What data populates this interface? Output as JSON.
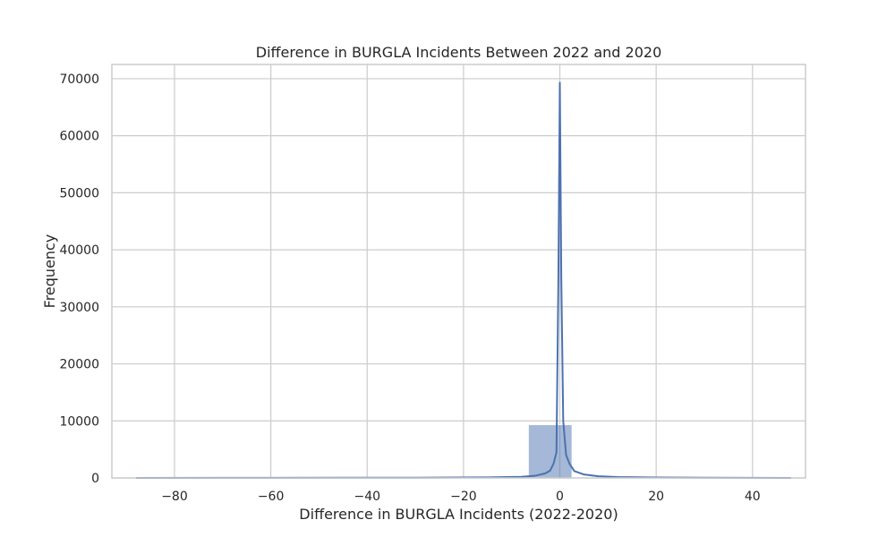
{
  "chart_data": {
    "type": "bar",
    "title": "Difference in BURGLA Incidents Between 2022 and 2020",
    "xlabel": "Difference in BURGLA Incidents (2022-2020)",
    "ylabel": "Frequency",
    "xlim": [
      -93,
      51
    ],
    "ylim": [
      0,
      72500
    ],
    "xticks": [
      -80,
      -60,
      -40,
      -20,
      0,
      20,
      40
    ],
    "xtick_labels": [
      "−80",
      "−60",
      "−40",
      "−20",
      "0",
      "20",
      "40"
    ],
    "yticks": [
      0,
      10000,
      20000,
      30000,
      40000,
      50000,
      60000,
      70000
    ],
    "ytick_labels": [
      "0",
      "10000",
      "20000",
      "30000",
      "40000",
      "50000",
      "60000",
      "70000"
    ],
    "grid": true,
    "bar_color": "#4c72b0",
    "bar_opacity": 0.5,
    "line_color": "#4c72b0",
    "histogram": [
      {
        "x0": -88,
        "x1": -79,
        "count": 5
      },
      {
        "x0": -79,
        "x1": -70,
        "count": 3
      },
      {
        "x0": -70,
        "x1": -61,
        "count": 2
      },
      {
        "x0": -61,
        "x1": -52,
        "count": 3
      },
      {
        "x0": -52,
        "x1": -43,
        "count": 4
      },
      {
        "x0": -43,
        "x1": -34,
        "count": 6
      },
      {
        "x0": -34,
        "x1": -25,
        "count": 10
      },
      {
        "x0": -25,
        "x1": -16,
        "count": 30
      },
      {
        "x0": -16,
        "x1": -6.5,
        "count": 150
      },
      {
        "x0": -6.5,
        "x1": 2.5,
        "count": 9300
      },
      {
        "x0": 2.5,
        "x1": 12,
        "count": 120
      },
      {
        "x0": 12,
        "x1": 21,
        "count": 40
      },
      {
        "x0": 21,
        "x1": 30,
        "count": 20
      },
      {
        "x0": 30,
        "x1": 39,
        "count": 10
      },
      {
        "x0": 39,
        "x1": 48,
        "count": 5
      }
    ],
    "kde": {
      "x": [
        -88,
        -60,
        -30,
        -15,
        -8,
        -5,
        -3,
        -2,
        -1.3,
        -0.7,
        -0.3,
        0,
        0.3,
        0.7,
        1.3,
        2,
        3,
        5,
        8,
        12,
        20,
        30,
        48
      ],
      "y": [
        10,
        20,
        40,
        100,
        200,
        400,
        800,
        1300,
        2500,
        4500,
        35000,
        69300,
        35000,
        10000,
        4000,
        2500,
        1200,
        600,
        300,
        150,
        80,
        40,
        10
      ]
    }
  }
}
